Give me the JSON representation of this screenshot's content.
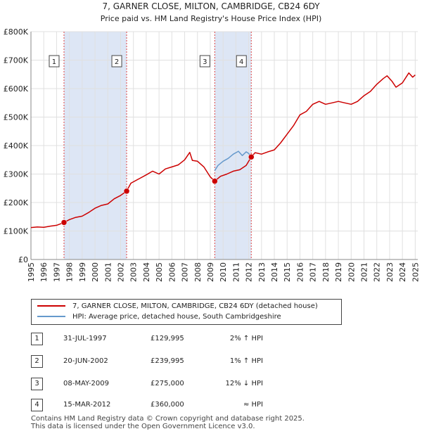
{
  "chart_data": {
    "type": "line",
    "title": "7, GARNER CLOSE, MILTON, CAMBRIDGE, CB24 6DY",
    "subtitle": "Price paid vs. HM Land Registry's House Price Index (HPI)",
    "ylim": [
      0,
      800000
    ],
    "xlim": [
      1995,
      2025.2
    ],
    "y_tick_values": [
      0,
      100000,
      200000,
      300000,
      400000,
      500000,
      600000,
      700000,
      800000
    ],
    "y_tick_labels": [
      "£0",
      "£100K",
      "£200K",
      "£300K",
      "£400K",
      "£500K",
      "£600K",
      "£700K",
      "£800K"
    ],
    "x_ticks": [
      1995,
      1996,
      1997,
      1998,
      1999,
      2000,
      2001,
      2002,
      2003,
      2004,
      2005,
      2006,
      2007,
      2008,
      2009,
      2010,
      2011,
      2012,
      2013,
      2014,
      2015,
      2016,
      2017,
      2018,
      2019,
      2020,
      2021,
      2022,
      2023,
      2024,
      2025
    ],
    "grid": true,
    "colors": {
      "property": "#cc0000",
      "hpi": "#6699cc",
      "shade": "#dde6f5",
      "vline": "#dd4444"
    },
    "series": [
      {
        "name": "7, GARNER CLOSE, MILTON, CAMBRIDGE, CB24 6DY (detached house)",
        "x": [
          1995.0,
          1995.5,
          1996.0,
          1996.5,
          1997.0,
          1997.58,
          1998.0,
          1998.5,
          1999.0,
          1999.5,
          2000.0,
          2000.5,
          2001.0,
          2001.5,
          2002.0,
          2002.47,
          2002.8,
          2003.5,
          2004.0,
          2004.5,
          2005.0,
          2005.5,
          2006.0,
          2006.5,
          2007.0,
          2007.4,
          2007.6,
          2008.0,
          2008.5,
          2009.0,
          2009.35,
          2009.8,
          2010.3,
          2010.8,
          2011.3,
          2011.8,
          2012.2,
          2012.5,
          2013.0,
          2013.5,
          2014.0,
          2014.5,
          2015.0,
          2015.5,
          2016.0,
          2016.5,
          2017.0,
          2017.5,
          2018.0,
          2018.5,
          2019.0,
          2019.5,
          2020.0,
          2020.5,
          2021.0,
          2021.5,
          2022.0,
          2022.5,
          2022.8,
          2023.2,
          2023.5,
          2024.0,
          2024.5,
          2024.8,
          2025.0
        ],
        "values": [
          112000,
          114000,
          113000,
          117000,
          120000,
          129995,
          140000,
          148000,
          152000,
          165000,
          180000,
          190000,
          195000,
          213000,
          225000,
          239995,
          268000,
          285000,
          297000,
          310000,
          300000,
          318000,
          325000,
          332000,
          350000,
          376000,
          348000,
          345000,
          325000,
          290000,
          275000,
          292000,
          300000,
          310000,
          315000,
          330000,
          360000,
          375000,
          370000,
          378000,
          385000,
          410000,
          440000,
          470000,
          508000,
          520000,
          545000,
          555000,
          545000,
          550000,
          555000,
          550000,
          545000,
          555000,
          575000,
          590000,
          615000,
          635000,
          645000,
          625000,
          605000,
          620000,
          655000,
          640000,
          648000
        ]
      },
      {
        "name": "HPI: Average price, detached house, South Cambridgeshire",
        "x": [
          2009.35,
          2009.6,
          2010.0,
          2010.4,
          2010.8,
          2011.2,
          2011.5,
          2011.8,
          2012.0,
          2012.2
        ],
        "values": [
          312000,
          330000,
          345000,
          355000,
          370000,
          380000,
          365000,
          378000,
          372000,
          360000
        ]
      }
    ],
    "sale_points": [
      {
        "x": 1997.58,
        "value": 129995
      },
      {
        "x": 2002.47,
        "value": 239995
      },
      {
        "x": 2009.35,
        "value": 275000
      },
      {
        "x": 2012.2,
        "value": 360000
      }
    ],
    "sale_markers": [
      {
        "label": "1",
        "x": 1997.58
      },
      {
        "label": "2",
        "x": 2002.47
      },
      {
        "label": "3",
        "x": 2009.35
      },
      {
        "label": "4",
        "x": 2012.2
      }
    ],
    "shaded_ranges": [
      [
        1997.58,
        2002.47
      ],
      [
        2009.35,
        2012.2
      ]
    ]
  },
  "legend": {
    "property_label": "7, GARNER CLOSE, MILTON, CAMBRIDGE, CB24 6DY (detached house)",
    "hpi_label": "HPI: Average price, detached house, South Cambridgeshire"
  },
  "sales": [
    {
      "num": "1",
      "date": "31-JUL-1997",
      "price": "£129,995",
      "hpi": "2% ↑ HPI"
    },
    {
      "num": "2",
      "date": "20-JUN-2002",
      "price": "£239,995",
      "hpi": "1% ↑ HPI"
    },
    {
      "num": "3",
      "date": "08-MAY-2009",
      "price": "£275,000",
      "hpi": "12% ↓ HPI"
    },
    {
      "num": "4",
      "date": "15-MAR-2012",
      "price": "£360,000",
      "hpi": "≈ HPI"
    }
  ],
  "footer": {
    "line1": "Contains HM Land Registry data © Crown copyright and database right 2025.",
    "line2": "This data is licensed under the Open Government Licence v3.0."
  }
}
